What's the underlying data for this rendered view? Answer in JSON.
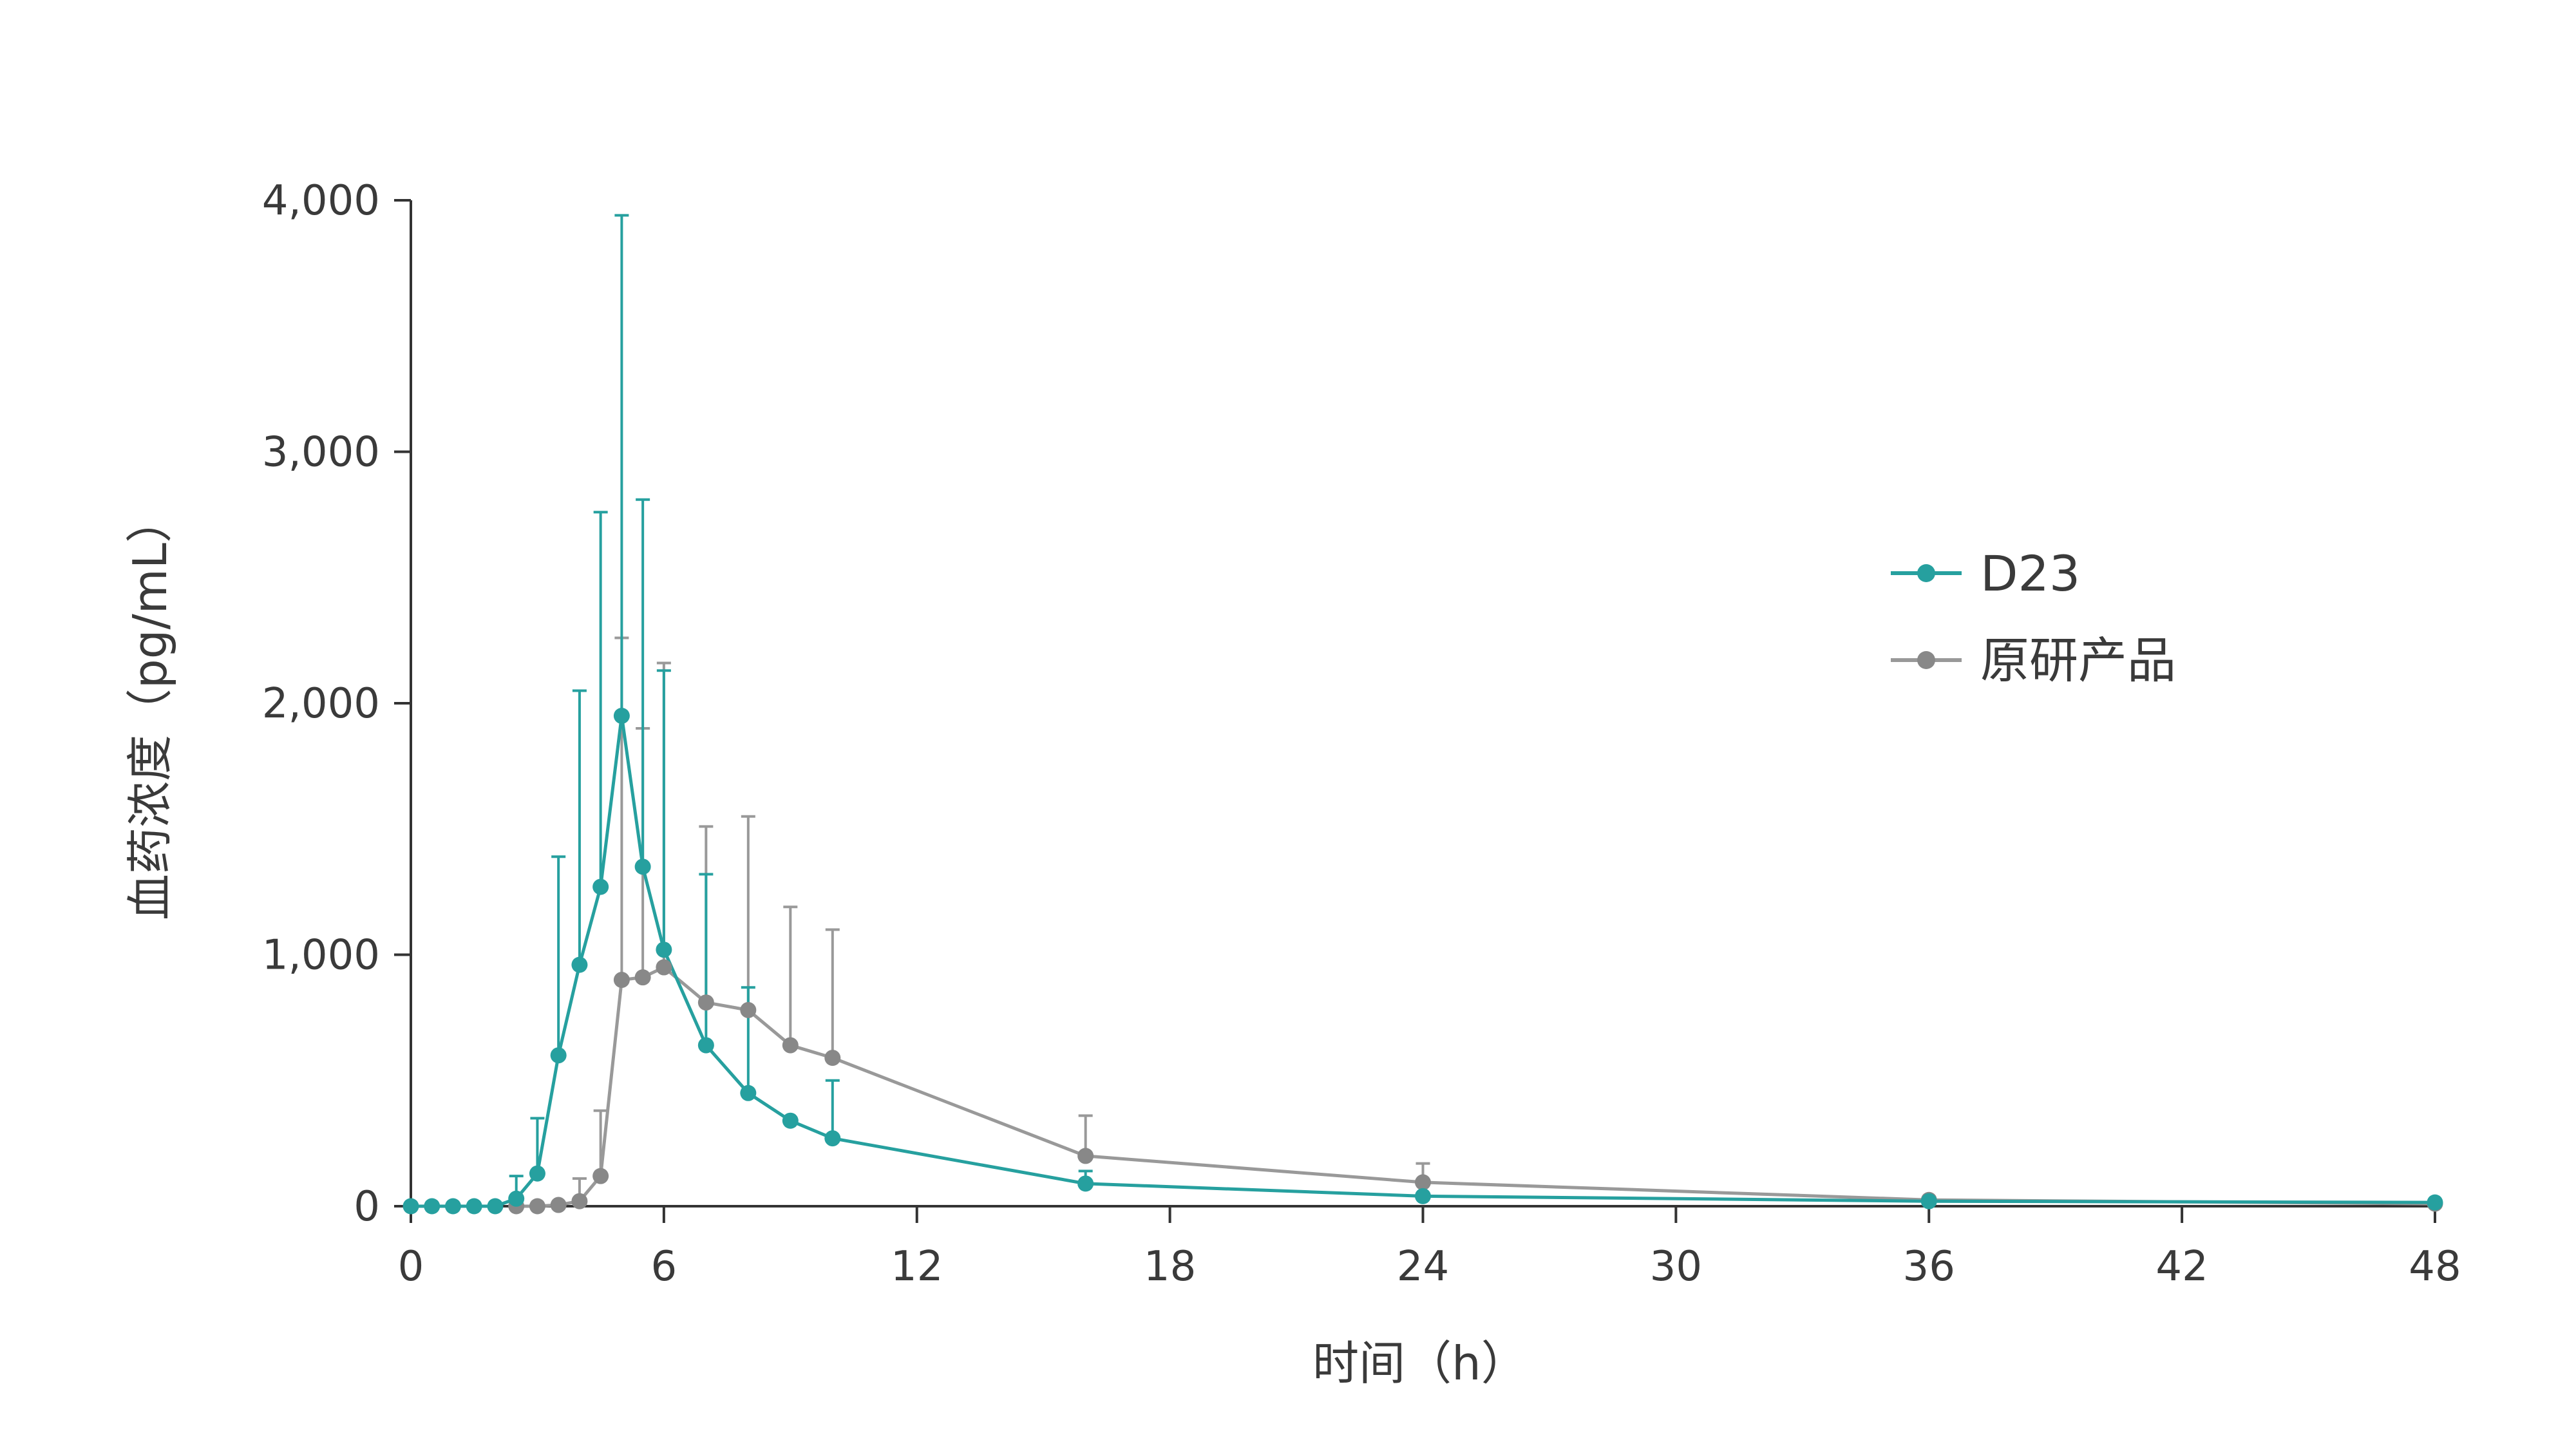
{
  "chart_data": {
    "type": "line",
    "title": "",
    "xlabel": "时间（h）",
    "ylabel": "血药浓度（pg/mL）",
    "xlim": [
      0,
      48
    ],
    "ylim": [
      0,
      4000
    ],
    "x_ticks": [
      0,
      6,
      12,
      18,
      24,
      30,
      36,
      42,
      48
    ],
    "y_ticks": [
      0,
      1000,
      2000,
      3000,
      4000
    ],
    "x_tick_labels": [
      "0",
      "6",
      "12",
      "18",
      "24",
      "30",
      "36",
      "42",
      "48"
    ],
    "y_tick_labels": [
      "0",
      "1,000",
      "2,000",
      "3,000",
      "4,000"
    ],
    "grid": false,
    "legend_position": "right",
    "series": [
      {
        "name": "D23",
        "color": "#26a09f",
        "x": [
          0,
          0.5,
          1,
          1.5,
          2,
          2.5,
          3,
          3.5,
          4,
          4.5,
          5,
          5.5,
          6,
          7,
          8,
          9,
          10,
          16,
          24,
          36,
          48
        ],
        "y": [
          0,
          0,
          0,
          0,
          0,
          30,
          130,
          600,
          960,
          1270,
          1950,
          1350,
          1020,
          640,
          450,
          340,
          270,
          90,
          40,
          20,
          15
        ],
        "err_upper": [
          0,
          0,
          0,
          0,
          0,
          120,
          350,
          1390,
          2050,
          2760,
          3940,
          2810,
          2130,
          1320,
          870,
          0,
          500,
          140,
          0,
          0,
          0
        ]
      },
      {
        "name": "原研产品",
        "color": "#999999",
        "marker_color": "#888888",
        "x": [
          2.5,
          3,
          3.5,
          4,
          4.5,
          5,
          5.5,
          6,
          7,
          8,
          9,
          10,
          16,
          24,
          36,
          48
        ],
        "y": [
          0,
          0,
          5,
          20,
          120,
          900,
          910,
          950,
          810,
          780,
          640,
          590,
          200,
          95,
          25,
          10
        ],
        "err_upper": [
          0,
          0,
          0,
          110,
          380,
          2260,
          1900,
          2160,
          1510,
          1550,
          1190,
          1100,
          360,
          170,
          0,
          0
        ]
      }
    ]
  }
}
